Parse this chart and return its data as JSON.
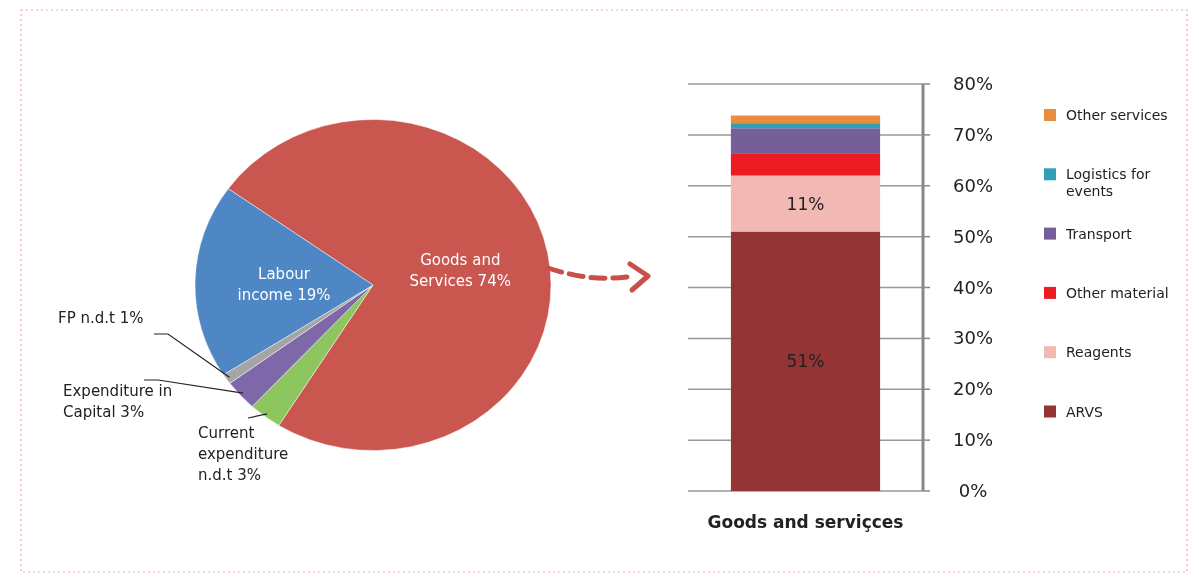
{
  "chart_data": [
    {
      "type": "pie",
      "categories": [
        "Goods and Services",
        "Current expenditure n.d.t",
        "Expenditure in Capital",
        "FP n.d.t",
        "Labour income"
      ],
      "values": [
        74,
        3,
        3,
        1,
        19
      ],
      "value_labels": [
        "74%",
        "3%",
        "3%",
        "1%",
        "19%"
      ],
      "colors": [
        "#c9564f",
        "#8dc55e",
        "#7f68aa",
        "#a5a5a5",
        "#4f86c4"
      ]
    },
    {
      "type": "bar",
      "stacked": true,
      "categories": [
        "Goods and serviçces"
      ],
      "ylim": [
        0,
        80
      ],
      "yticks": [
        {
          "value": 0,
          "label": "0%"
        },
        {
          "value": 10,
          "label": "10%"
        },
        {
          "value": 20,
          "label": "20%"
        },
        {
          "value": 30,
          "label": "30%"
        },
        {
          "value": 40,
          "label": "40%"
        },
        {
          "value": 50,
          "label": "50%"
        },
        {
          "value": 60,
          "label": "60%"
        },
        {
          "value": 70,
          "label": "70%"
        },
        {
          "value": 80,
          "label": "80%"
        }
      ],
      "grid": "y",
      "legend": "right",
      "series": [
        {
          "name": "ARVS",
          "color": "#953434",
          "values": [
            51
          ],
          "value_labels": [
            "51%"
          ]
        },
        {
          "name": "Reagents",
          "color": "#f2b8b4",
          "values": [
            11
          ],
          "value_labels": [
            "11%"
          ]
        },
        {
          "name": "Other material",
          "color": "#ec1c24",
          "values": [
            4.4
          ]
        },
        {
          "name": "Transport",
          "color": "#765e98",
          "values": [
            4.9
          ]
        },
        {
          "name": "Logistics for events",
          "color": "#31a0b5",
          "values": [
            1
          ]
        },
        {
          "name": "Other services",
          "color": "#ea8c3d",
          "values": [
            1.5
          ]
        }
      ]
    }
  ]
}
